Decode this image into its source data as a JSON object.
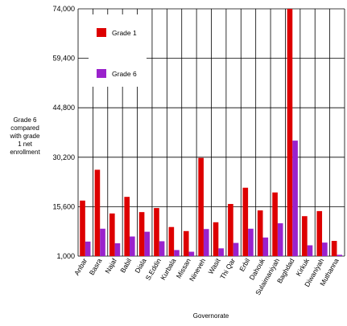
{
  "chart_data": {
    "type": "bar",
    "title": "",
    "xlabel": "Governorate",
    "ylabel_lines": [
      "Grade 6",
      "compared",
      "with grade",
      "1 net",
      "enrollment"
    ],
    "ylim": [
      1000,
      74000
    ],
    "yticks": [
      1000,
      15600,
      30200,
      44800,
      59400,
      74000
    ],
    "ytick_labels": [
      "1,000",
      "15,600",
      "30,200",
      "44,800",
      "59,400",
      "74,000"
    ],
    "grid": true,
    "legend_position": "top-left",
    "categories": [
      "Anbar",
      "Basra",
      "Najaf",
      "Babil",
      "Diala",
      "S.Eddin",
      "Kurbala",
      "Missan",
      "Nineveh",
      "Wasit",
      "Thi Qar",
      "Erbil",
      "Dahouk",
      "Sulaimaniyah",
      "Baghdad",
      "Kirkuk",
      "Diwaniyah",
      "Muthanna"
    ],
    "series": [
      {
        "name": "Grade 1",
        "color": "#dd0000",
        "values": [
          17400,
          26500,
          13600,
          18500,
          14000,
          15200,
          9600,
          8400,
          30000,
          11000,
          16400,
          21200,
          14500,
          19800,
          74000,
          12800,
          14300,
          5500
        ]
      },
      {
        "name": "Grade 6",
        "color": "#9a22cc",
        "values": [
          5300,
          9100,
          4800,
          6800,
          8200,
          5400,
          2800,
          2300,
          9000,
          3300,
          4900,
          9100,
          6500,
          10700,
          35100,
          4200,
          5000,
          1400
        ]
      }
    ]
  }
}
